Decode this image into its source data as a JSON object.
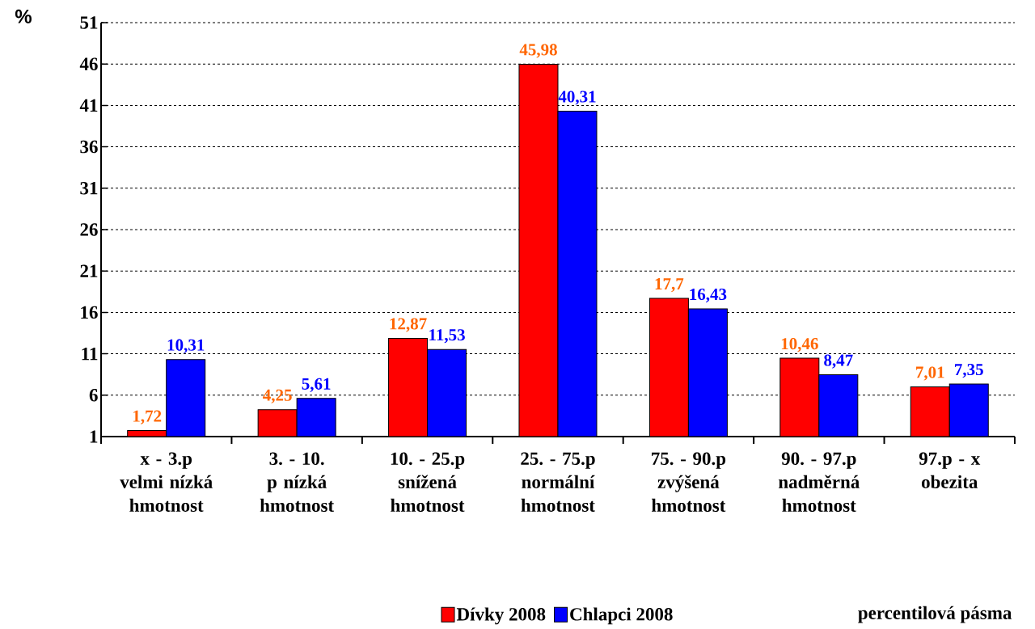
{
  "chart_data": {
    "type": "bar",
    "ylabel": "%",
    "annotations": [
      "percentilová pásma"
    ],
    "categories": [
      "x - 3.p velmi nízká hmotnost",
      "3. - 10. p nízká hmotnost",
      "10. - 25.p snížená hmotnost",
      "25. - 75.p normální hmotnost",
      "75. - 90.p zvýšená hmotnost",
      "90. - 97.p nadměrná hmotnost",
      "97.p - x obezita"
    ],
    "series": [
      {
        "name": "Dívky 2008",
        "color": "#ff0000",
        "values": [
          1.72,
          4.25,
          12.87,
          45.98,
          17.7,
          10.46,
          7.01
        ],
        "value_labels": [
          "1,72",
          "4,25",
          "12,87",
          "45,98",
          "17,7",
          "10,46",
          "7,01"
        ]
      },
      {
        "name": "Chlapci 2008",
        "color": "#0000ff",
        "values": [
          10.31,
          5.61,
          11.53,
          40.31,
          16.43,
          8.47,
          7.35
        ],
        "value_labels": [
          "10,31",
          "5,61",
          "11,53",
          "40,31",
          "16,43",
          "8,47",
          "7,35"
        ]
      }
    ],
    "ylim": [
      1,
      51
    ],
    "yticks": [
      1,
      6,
      11,
      16,
      21,
      26,
      31,
      36,
      41,
      46,
      51
    ],
    "grid": "y",
    "legend": "bottom"
  }
}
